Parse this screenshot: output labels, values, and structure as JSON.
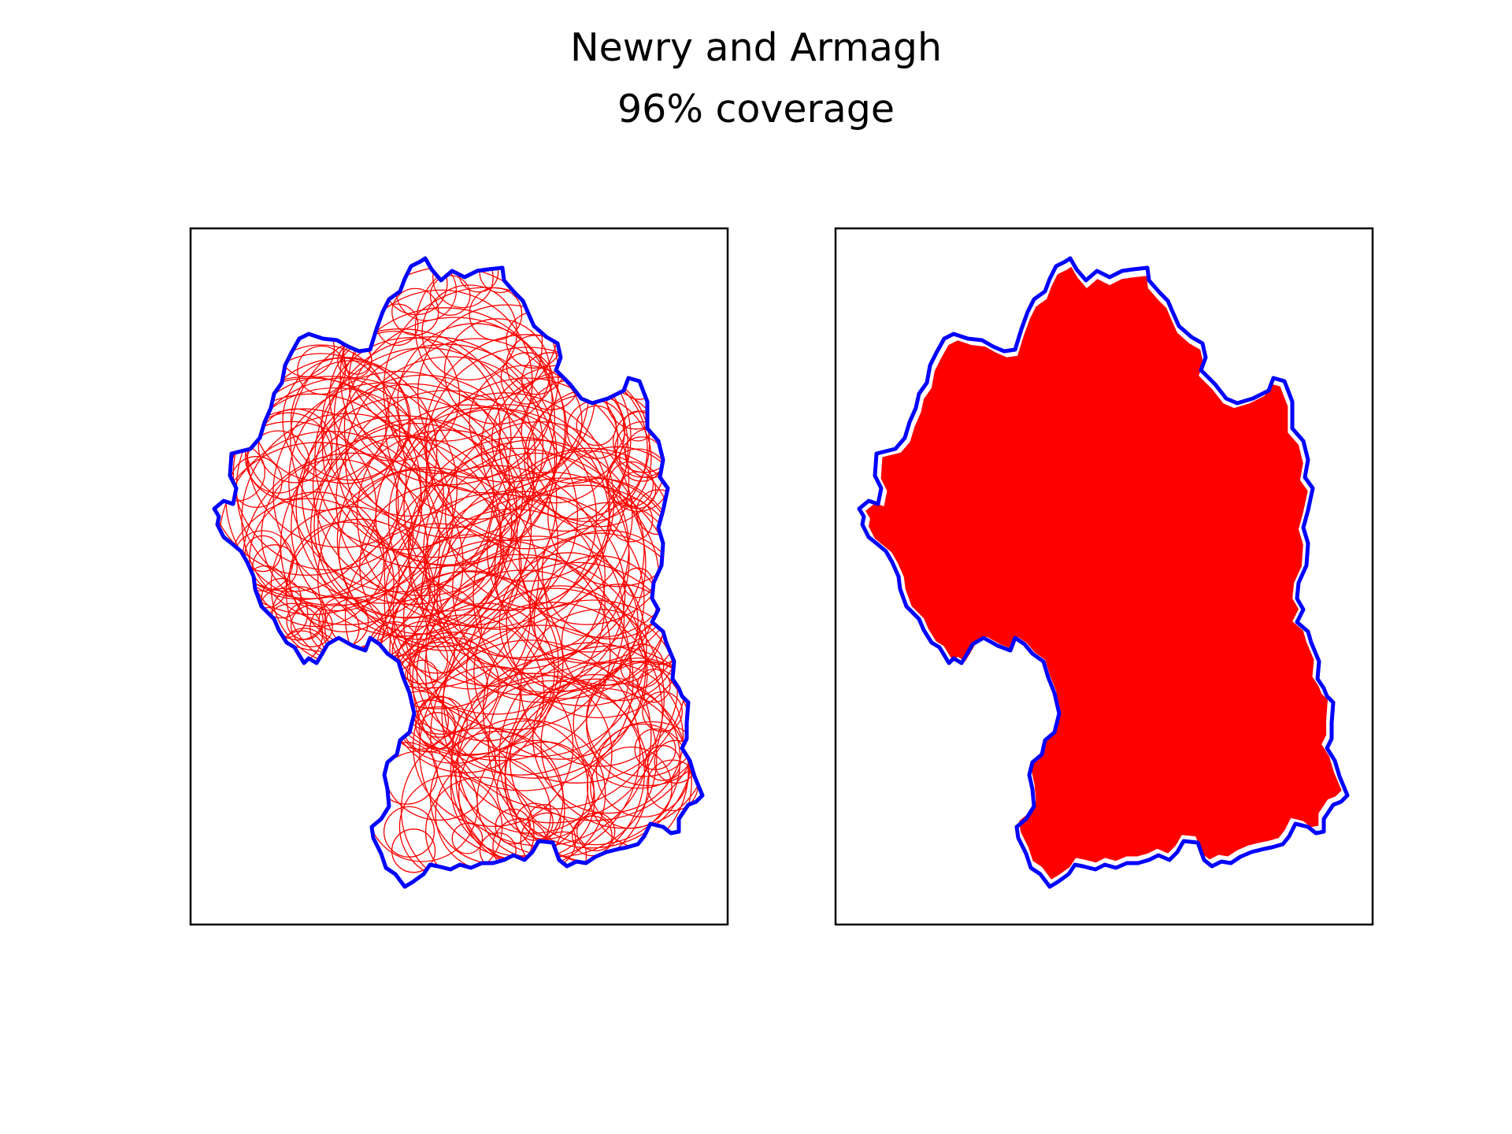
{
  "figure": {
    "title": "Newry and Armagh",
    "subtitle": "96% coverage"
  },
  "map": {
    "coverage_percent": 96,
    "boundary_color": "#0000ff",
    "fill_color": "#ff0000",
    "frame_color": "#000000",
    "panels": [
      {
        "name": "circle-coverage-panel",
        "style": "circle outlines"
      },
      {
        "name": "filled-coverage-panel",
        "style": "filled union"
      }
    ]
  }
}
